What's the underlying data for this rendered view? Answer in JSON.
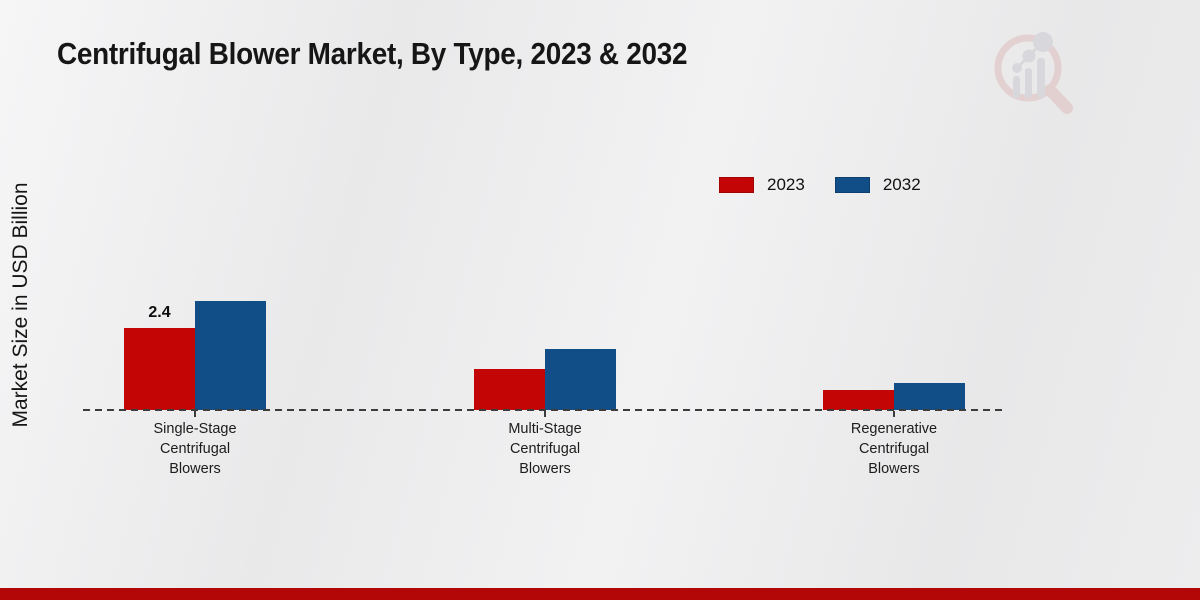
{
  "header": {
    "title": "Centrifugal Blower Market, By Type, 2023 & 2032"
  },
  "watermark": {
    "icon": "magnifier-bar-chart-logo",
    "ring_color": "#debaba",
    "glyph_color": "#c8c8cf"
  },
  "chart_data": {
    "type": "bar",
    "title": "Centrifugal Blower Market, By Type, 2023 & 2032",
    "ylabel": "Market Size in USD Billion",
    "xlabel": "",
    "categories": [
      "Single-Stage Centrifugal Blowers",
      "Multi-Stage Centrifugal Blowers",
      "Regenerative Centrifugal Blowers"
    ],
    "series": [
      {
        "name": "2023",
        "color": "#c40505",
        "values": [
          2.4,
          1.2,
          0.6
        ]
      },
      {
        "name": "2032",
        "color": "#114e87",
        "values": [
          3.2,
          1.8,
          0.8
        ]
      }
    ],
    "annotations": [
      {
        "series_index": 0,
        "category_index": 0,
        "label": "2.4"
      }
    ],
    "ylim": [
      0,
      3.5
    ],
    "grid": false,
    "legend_position": "upper-right",
    "baseline_style": "dashed"
  },
  "footer": {
    "accent_color": "#b30606"
  }
}
